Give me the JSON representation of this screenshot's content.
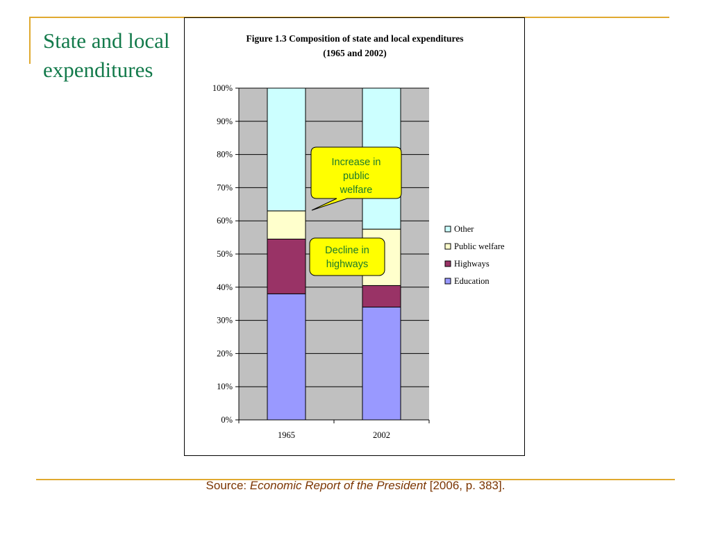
{
  "slide": {
    "title": "State and local expenditures",
    "source_prefix": "Source: ",
    "source_title": "Economic Report of the President",
    "source_suffix": " [2006, p. 383]."
  },
  "chart_data": {
    "type": "bar",
    "stacked": true,
    "title_line1": "Figure 1.3 Composition of state and local expenditures",
    "title_line2": "(1965 and 2002)",
    "categories": [
      "1965",
      "2002"
    ],
    "ylim": [
      0,
      100
    ],
    "yticks": [
      "0%",
      "10%",
      "20%",
      "30%",
      "40%",
      "50%",
      "60%",
      "70%",
      "80%",
      "90%",
      "100%"
    ],
    "grid": true,
    "legend_position": "right",
    "series": [
      {
        "name": "Education",
        "values": [
          38,
          34
        ],
        "color": "#9999FF"
      },
      {
        "name": "Highways",
        "values": [
          16.5,
          6.5
        ],
        "color": "#993366"
      },
      {
        "name": "Public welfare",
        "values": [
          8.5,
          17
        ],
        "color": "#FFFFCC"
      },
      {
        "name": "Other",
        "values": [
          37,
          42.5
        ],
        "color": "#CCFFFF"
      }
    ],
    "annotations": [
      {
        "text": [
          "Increase in",
          "public",
          "welfare"
        ]
      },
      {
        "text": [
          "Decline in",
          "highways"
        ]
      }
    ]
  },
  "colors": {
    "title": "#137A4B",
    "rule": "#E0A92F",
    "plot_bg": "#C0C0C0",
    "callout_fill": "#FFFF00",
    "callout_text": "#1C7A2C",
    "source_text": "#7B3500"
  }
}
